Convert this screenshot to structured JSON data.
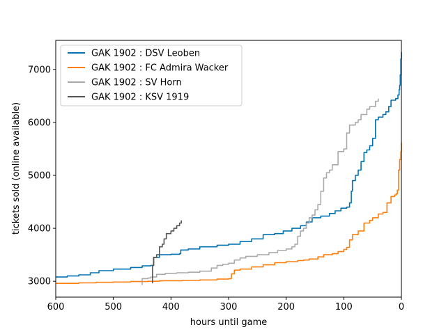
{
  "chart_data": {
    "type": "line",
    "xlabel": "hours until game",
    "ylabel": "tickets sold (online available)",
    "xlim": [
      600,
      0
    ],
    "ylim": [
      2700,
      7550
    ],
    "x_ticks": [
      "600",
      "500",
      "400",
      "300",
      "200",
      "100",
      "0"
    ],
    "y_ticks": [
      "3000",
      "4000",
      "5000",
      "6000",
      "7000"
    ],
    "legend_position": "upper-left",
    "grid": false,
    "series": [
      {
        "name": "GAK 1902 : DSV Leoben",
        "color": "#0072b2",
        "points": [
          [
            600,
            3080
          ],
          [
            580,
            3100
          ],
          [
            560,
            3120
          ],
          [
            540,
            3160
          ],
          [
            525,
            3200
          ],
          [
            500,
            3230
          ],
          [
            470,
            3260
          ],
          [
            450,
            3290
          ],
          [
            435,
            3300
          ],
          [
            430,
            3450
          ],
          [
            420,
            3500
          ],
          [
            400,
            3510
          ],
          [
            385,
            3520
          ],
          [
            383,
            3590
          ],
          [
            370,
            3610
          ],
          [
            350,
            3650
          ],
          [
            320,
            3680
          ],
          [
            300,
            3700
          ],
          [
            280,
            3750
          ],
          [
            260,
            3800
          ],
          [
            240,
            3880
          ],
          [
            220,
            3900
          ],
          [
            205,
            3950
          ],
          [
            190,
            4000
          ],
          [
            175,
            4050
          ],
          [
            165,
            4120
          ],
          [
            155,
            4200
          ],
          [
            140,
            4230
          ],
          [
            125,
            4280
          ],
          [
            115,
            4330
          ],
          [
            105,
            4380
          ],
          [
            95,
            4400
          ],
          [
            90,
            4480
          ],
          [
            87,
            4700
          ],
          [
            85,
            4900
          ],
          [
            80,
            5000
          ],
          [
            75,
            5100
          ],
          [
            70,
            5260
          ],
          [
            65,
            5430
          ],
          [
            60,
            5480
          ],
          [
            55,
            5560
          ],
          [
            50,
            5700
          ],
          [
            45,
            6050
          ],
          [
            40,
            6100
          ],
          [
            32,
            6150
          ],
          [
            27,
            6200
          ],
          [
            22,
            6300
          ],
          [
            18,
            6420
          ],
          [
            10,
            6450
          ],
          [
            6,
            6520
          ],
          [
            4,
            6620
          ],
          [
            3,
            6700
          ],
          [
            2,
            6900
          ],
          [
            1,
            7200
          ],
          [
            0,
            7330
          ]
        ]
      },
      {
        "name": "GAK 1902 : FC Admira Wacker",
        "color": "#ff7f0e",
        "points": [
          [
            600,
            2960
          ],
          [
            560,
            2970
          ],
          [
            530,
            2980
          ],
          [
            500,
            2985
          ],
          [
            470,
            2995
          ],
          [
            440,
            3000
          ],
          [
            420,
            3010
          ],
          [
            380,
            3015
          ],
          [
            350,
            3025
          ],
          [
            320,
            3040
          ],
          [
            300,
            3050
          ],
          [
            295,
            3140
          ],
          [
            290,
            3210
          ],
          [
            280,
            3230
          ],
          [
            260,
            3270
          ],
          [
            240,
            3310
          ],
          [
            220,
            3350
          ],
          [
            200,
            3370
          ],
          [
            180,
            3390
          ],
          [
            170,
            3400
          ],
          [
            160,
            3420
          ],
          [
            145,
            3460
          ],
          [
            135,
            3500
          ],
          [
            120,
            3520
          ],
          [
            110,
            3560
          ],
          [
            100,
            3600
          ],
          [
            95,
            3640
          ],
          [
            90,
            3780
          ],
          [
            85,
            3880
          ],
          [
            75,
            3950
          ],
          [
            65,
            4100
          ],
          [
            55,
            4150
          ],
          [
            50,
            4200
          ],
          [
            40,
            4270
          ],
          [
            32,
            4300
          ],
          [
            25,
            4480
          ],
          [
            18,
            4600
          ],
          [
            12,
            4630
          ],
          [
            9,
            4650
          ],
          [
            7,
            4720
          ],
          [
            5,
            5100
          ],
          [
            3,
            5300
          ],
          [
            1,
            5450
          ],
          [
            0,
            5620
          ]
        ]
      },
      {
        "name": "GAK 1902 : SV Horn",
        "color": "#aaaaaa",
        "points": [
          [
            450,
            2930
          ],
          [
            450,
            3050
          ],
          [
            440,
            3060
          ],
          [
            435,
            3080
          ],
          [
            425,
            3130
          ],
          [
            410,
            3150
          ],
          [
            390,
            3160
          ],
          [
            370,
            3170
          ],
          [
            350,
            3190
          ],
          [
            330,
            3250
          ],
          [
            320,
            3300
          ],
          [
            310,
            3320
          ],
          [
            300,
            3340
          ],
          [
            290,
            3400
          ],
          [
            280,
            3440
          ],
          [
            270,
            3470
          ],
          [
            250,
            3500
          ],
          [
            230,
            3540
          ],
          [
            215,
            3580
          ],
          [
            200,
            3610
          ],
          [
            190,
            3650
          ],
          [
            185,
            3700
          ],
          [
            180,
            3850
          ],
          [
            175,
            3950
          ],
          [
            170,
            4000
          ],
          [
            165,
            4100
          ],
          [
            160,
            4200
          ],
          [
            155,
            4250
          ],
          [
            150,
            4350
          ],
          [
            145,
            4450
          ],
          [
            140,
            4700
          ],
          [
            135,
            4950
          ],
          [
            130,
            5050
          ],
          [
            125,
            5100
          ],
          [
            120,
            5200
          ],
          [
            110,
            5450
          ],
          [
            100,
            5500
          ],
          [
            95,
            5800
          ],
          [
            90,
            5950
          ],
          [
            80,
            6000
          ],
          [
            75,
            6050
          ],
          [
            70,
            6150
          ],
          [
            60,
            6250
          ],
          [
            55,
            6300
          ],
          [
            45,
            6400
          ],
          [
            40,
            6450
          ]
        ]
      },
      {
        "name": "GAK 1902 : KSV 1919",
        "color": "#555555",
        "points": [
          [
            433,
            2970
          ],
          [
            432,
            3300
          ],
          [
            430,
            3450
          ],
          [
            425,
            3500
          ],
          [
            420,
            3650
          ],
          [
            415,
            3700
          ],
          [
            412,
            3800
          ],
          [
            408,
            3900
          ],
          [
            400,
            3950
          ],
          [
            395,
            4000
          ],
          [
            390,
            4050
          ],
          [
            385,
            4100
          ],
          [
            382,
            4150
          ]
        ]
      }
    ]
  }
}
